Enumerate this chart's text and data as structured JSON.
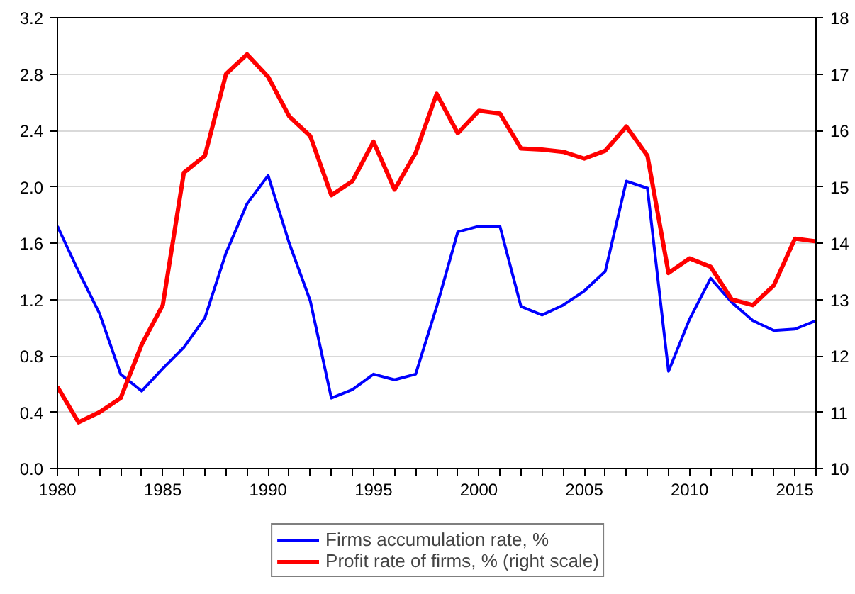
{
  "chart_data": {
    "type": "line",
    "x": [
      1980,
      1981,
      1982,
      1983,
      1984,
      1985,
      1986,
      1987,
      1988,
      1989,
      1990,
      1991,
      1992,
      1993,
      1994,
      1995,
      1996,
      1997,
      1998,
      1999,
      2000,
      2001,
      2002,
      2003,
      2004,
      2005,
      2006,
      2007,
      2008,
      2009,
      2010,
      2011,
      2012,
      2013,
      2014,
      2015,
      2016
    ],
    "series": [
      {
        "name": "Firms accumulation rate, %",
        "color": "#0000ff",
        "values": [
          1.72,
          1.4,
          1.1,
          0.67,
          0.55,
          0.71,
          0.86,
          1.07,
          1.53,
          1.88,
          2.08,
          1.6,
          1.19,
          0.5,
          0.56,
          0.67,
          0.63,
          0.67,
          1.15,
          1.68,
          1.72,
          1.72,
          1.15,
          1.09,
          1.16,
          1.26,
          1.4,
          2.04,
          1.99,
          0.69,
          1.06,
          1.35,
          1.18,
          1.05,
          0.98,
          0.99,
          1.05
        ]
      },
      {
        "name": "Profit rate of firms, % (right scale)",
        "color": "#ff0000",
        "axis": "y2",
        "values": [
          11.45,
          10.82,
          11.0,
          11.25,
          12.2,
          12.9,
          15.25,
          15.55,
          17.0,
          17.35,
          16.95,
          16.25,
          15.9,
          14.85,
          15.1,
          15.8,
          14.95,
          15.6,
          16.65,
          15.95,
          16.35,
          16.3,
          15.68,
          15.66,
          15.62,
          15.5,
          15.64,
          16.07,
          15.55,
          13.47,
          13.73,
          13.58,
          13.0,
          12.9,
          13.25,
          14.08,
          14.03
        ]
      }
    ],
    "xlim": [
      1980,
      2016
    ],
    "xticks": [
      1980,
      {
        "value": 1981,
        "label": null
      },
      {
        "value": 1982,
        "label": null
      },
      {
        "value": 1983,
        "label": null
      },
      {
        "value": 1984,
        "label": null
      },
      1985,
      {
        "value": 1986,
        "label": null
      },
      {
        "value": 1987,
        "label": null
      },
      {
        "value": 1988,
        "label": null
      },
      {
        "value": 1989,
        "label": null
      },
      1990,
      {
        "value": 1991,
        "label": null
      },
      {
        "value": 1992,
        "label": null
      },
      {
        "value": 1993,
        "label": null
      },
      {
        "value": 1994,
        "label": null
      },
      1995,
      {
        "value": 1996,
        "label": null
      },
      {
        "value": 1997,
        "label": null
      },
      {
        "value": 1998,
        "label": null
      },
      {
        "value": 1999,
        "label": null
      },
      2000,
      {
        "value": 2001,
        "label": null
      },
      {
        "value": 2002,
        "label": null
      },
      {
        "value": 2003,
        "label": null
      },
      {
        "value": 2004,
        "label": null
      },
      2005,
      {
        "value": 2006,
        "label": null
      },
      {
        "value": 2007,
        "label": null
      },
      {
        "value": 2008,
        "label": null
      },
      {
        "value": 2009,
        "label": null
      },
      2010,
      {
        "value": 2011,
        "label": null
      },
      {
        "value": 2012,
        "label": null
      },
      {
        "value": 2013,
        "label": null
      },
      {
        "value": 2014,
        "label": null
      },
      2015,
      {
        "value": 2016,
        "label": null
      }
    ],
    "ylim": [
      0,
      3.2
    ],
    "yticks": [
      {
        "value": 0,
        "label": "0.0"
      },
      0.4,
      0.8,
      1.2,
      1.6,
      {
        "value": 2,
        "label": "2.0"
      },
      2.4,
      2.8,
      3.2
    ],
    "y2lim": [
      10,
      18
    ],
    "y2ticks": [
      10,
      11,
      12,
      13,
      14,
      15,
      16,
      17,
      18
    ],
    "grid": "y",
    "legend": "bottom"
  }
}
